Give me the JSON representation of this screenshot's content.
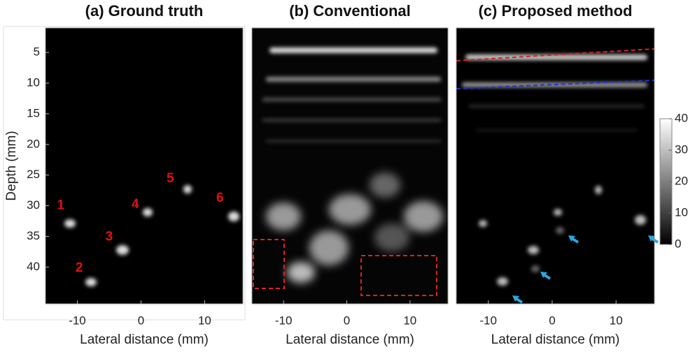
{
  "chart_data": [
    {
      "type": "image",
      "title": "(a) Ground truth",
      "xlabel": "Lateral distance (mm)",
      "ylabel": "Depth (mm)",
      "xlim": [
        -15,
        16
      ],
      "xticks": [
        -10,
        0,
        10
      ],
      "ylim": [
        1,
        46
      ],
      "yticks": [
        5,
        10,
        15,
        20,
        25,
        30,
        35,
        40
      ],
      "annotations": [
        {
          "text": "1",
          "x": -12.6,
          "y": 30
        },
        {
          "text": "2",
          "x": -9.7,
          "y": 40.2
        },
        {
          "text": "3",
          "x": -5,
          "y": 35.1
        },
        {
          "text": "4",
          "x": -0.9,
          "y": 29.8
        },
        {
          "text": "5",
          "x": 4.6,
          "y": 25.6
        },
        {
          "text": "6",
          "x": 12.4,
          "y": 28.8
        }
      ]
    },
    {
      "type": "image",
      "title": "(b) Conventional",
      "xlabel": "Lateral distance (mm)",
      "xlim": [
        -15,
        16
      ],
      "xticks": [
        -10,
        0,
        10
      ],
      "ylim": [
        1,
        46
      ]
    },
    {
      "type": "image",
      "title": "(c) Proposed method",
      "xlabel": "Lateral distance (mm)",
      "xlim": [
        -15,
        16
      ],
      "xticks": [
        -10,
        0,
        10
      ],
      "ylim": [
        1,
        46
      ],
      "colorbar": {
        "lim": [
          0,
          40
        ],
        "ticks": [
          0,
          10,
          20,
          30,
          40
        ]
      }
    }
  ]
}
